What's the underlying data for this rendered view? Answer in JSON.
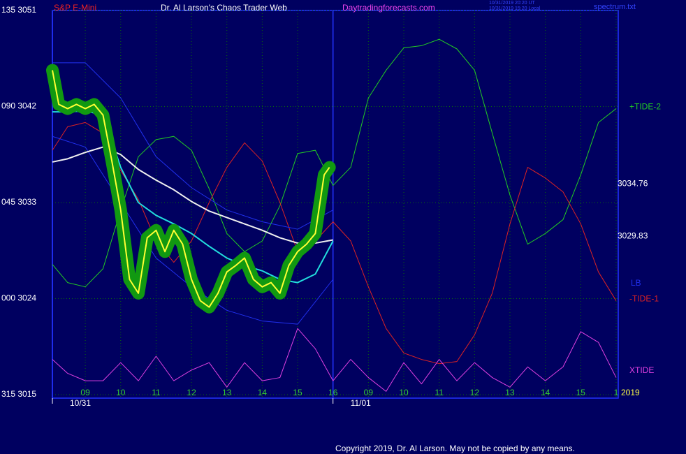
{
  "chart_data": {
    "type": "line",
    "instrument": "S&P E-Mini",
    "title": "Dr. Al Larson's Chaos Trader Web",
    "site": "Daytradingforecasts.com",
    "timestamps": [
      "10/31/2019 20:20 UT",
      "10/31/2019 15:20 Local"
    ],
    "file": "spectrum.txt",
    "copyright": "Copyright 2019, Dr. Al Larson. May not be copied by any means.",
    "year": "2019",
    "xlim": [
      0.07,
      16.06
    ],
    "xticks": [
      {
        "value": 1,
        "label": "09"
      },
      {
        "value": 2,
        "label": "10"
      },
      {
        "value": 3,
        "label": "11"
      },
      {
        "value": 4,
        "label": "12"
      },
      {
        "value": 5,
        "label": "13"
      },
      {
        "value": 6,
        "label": "14"
      },
      {
        "value": 7,
        "label": "15"
      },
      {
        "value": 8,
        "label": "16"
      },
      {
        "value": 9,
        "label": "09"
      },
      {
        "value": 10,
        "label": "10"
      },
      {
        "value": 11,
        "label": "11"
      },
      {
        "value": 12,
        "label": "12"
      },
      {
        "value": 13,
        "label": "13"
      },
      {
        "value": 14,
        "label": "14"
      },
      {
        "value": 15,
        "label": "15"
      },
      {
        "value": 16,
        "label": "1"
      }
    ],
    "dates": [
      {
        "value": 0.07,
        "label": "10/31"
      },
      {
        "value": 8,
        "label": "11/01"
      }
    ],
    "ylim": [
      3015,
      3051
    ],
    "yticks": [
      {
        "value": 3051,
        "label": "135 3051"
      },
      {
        "value": 3042,
        "label": "090 3042"
      },
      {
        "value": 3033,
        "label": "045 3033"
      },
      {
        "value": 3024,
        "label": "000 3024"
      },
      {
        "value": 3015,
        "label": "315 3015"
      }
    ],
    "grid": true,
    "price_labels": [
      3034.76,
      3029.83
    ],
    "series": [
      {
        "name": "+TIDE-2",
        "color": "#22cc22",
        "width": 1,
        "x": [
          0.07,
          0.5,
          1,
          1.5,
          2,
          2.5,
          3,
          3.5,
          4,
          4.5,
          5,
          5.5,
          6,
          6.5,
          7,
          7.5,
          8,
          8.5,
          9,
          9.5,
          10,
          10.5,
          11,
          11.5,
          12,
          12.5,
          13,
          13.5,
          14,
          14.5,
          15,
          15.5,
          16
        ],
        "values": [
          3027.2,
          3025.5,
          3025.1,
          3026.8,
          3032.3,
          3037.3,
          3038.9,
          3039.2,
          3037.9,
          3034.3,
          3030.1,
          3028.4,
          3029.4,
          3032.7,
          3037.6,
          3037.9,
          3034.6,
          3036.3,
          3042.8,
          3045.4,
          3047.5,
          3047.7,
          3048.3,
          3047.4,
          3045.4,
          3039.5,
          3033.7,
          3029.1,
          3030.1,
          3031.4,
          3035.6,
          3040.5,
          3041.8
        ]
      },
      {
        "name": "-TIDE-1",
        "color": "#dd2222",
        "width": 1,
        "x": [
          0.07,
          0.5,
          1,
          1.5,
          2,
          2.5,
          3,
          3.5,
          4,
          4.5,
          5,
          5.5,
          6,
          6.5,
          7,
          7.5,
          8,
          8.5,
          9,
          9.5,
          10,
          10.5,
          11,
          11.5,
          12,
          12.5,
          13,
          13.5,
          14,
          14.5,
          15,
          15.5,
          16
        ],
        "values": [
          3037.9,
          3040.1,
          3040.5,
          3039.5,
          3036.0,
          3033.3,
          3029.4,
          3027.4,
          3029.4,
          3033.0,
          3036.3,
          3038.6,
          3036.9,
          3033.0,
          3028.4,
          3029.4,
          3031.2,
          3029.4,
          3025.1,
          3021.2,
          3018.9,
          3018.3,
          3017.9,
          3018.1,
          3020.6,
          3024.5,
          3031.0,
          3036.3,
          3035.3,
          3034.0,
          3031.0,
          3026.5,
          3023.8
        ]
      },
      {
        "name": "XTIDE",
        "color": "#e040e0",
        "width": 1,
        "x": [
          0.07,
          0.5,
          1,
          1.5,
          2,
          2.5,
          3,
          3.5,
          4,
          4.5,
          5,
          5.5,
          6,
          6.5,
          7,
          7.5,
          8,
          8.5,
          9,
          9.5,
          10,
          10.5,
          11,
          11.5,
          12,
          12.5,
          13,
          13.5,
          14,
          14.5,
          15,
          15.5,
          16
        ],
        "values": [
          3018.3,
          3017.0,
          3016.3,
          3016.3,
          3018.0,
          3016.3,
          3018.6,
          3016.3,
          3017.3,
          3018.0,
          3015.7,
          3018.0,
          3016.3,
          3016.6,
          3021.2,
          3019.3,
          3016.3,
          3018.3,
          3016.6,
          3015.3,
          3018.0,
          3016.0,
          3018.3,
          3016.3,
          3018.0,
          3016.6,
          3015.7,
          3017.6,
          3016.3,
          3017.6,
          3020.9,
          3019.9,
          3016.6
        ]
      },
      {
        "name": "LB",
        "color": "#2030ee",
        "width": 1,
        "x": [
          0.07,
          1,
          2,
          3,
          4,
          5,
          6,
          7,
          8
        ],
        "values": [
          3039.2,
          3038.2,
          3033.0,
          3027.8,
          3025.1,
          3022.9,
          3021.9,
          3021.6,
          3025.8
        ]
      },
      {
        "color": "#2030ee",
        "width": 1,
        "x": [
          0.07,
          1,
          2,
          3,
          4,
          5,
          6,
          7,
          8
        ],
        "values": [
          3046.1,
          3046.1,
          3042.8,
          3037.3,
          3034.4,
          3032.3,
          3031.2,
          3030.5,
          3032.3
        ]
      },
      {
        "color": "#f0f0f0",
        "width": 2,
        "x": [
          0.07,
          0.5,
          1,
          1.5,
          2,
          2.5,
          3,
          3.5,
          4,
          4.5,
          5,
          5.5,
          6,
          6.5,
          7,
          7.5,
          8
        ],
        "values": [
          3036.8,
          3037.1,
          3037.7,
          3038.2,
          3037.5,
          3036.1,
          3035.1,
          3034.2,
          3033.1,
          3032.2,
          3031.6,
          3031.0,
          3030.4,
          3029.7,
          3029.2,
          3029.2,
          3029.5
        ]
      },
      {
        "color": "#22dddd",
        "width": 2,
        "x": [
          0.07,
          0.5,
          1,
          1.5,
          2,
          2.5,
          3,
          3.5,
          4,
          4.5,
          5,
          5.5,
          6,
          6.5,
          7,
          7.5,
          8
        ],
        "values": [
          3041.5,
          3041.5,
          3041.6,
          3041.2,
          3036.3,
          3033.0,
          3031.8,
          3031.0,
          3030.1,
          3028.9,
          3027.8,
          3027.1,
          3026.6,
          3025.8,
          3025.5,
          3026.3,
          3029.4
        ]
      },
      {
        "color": "#ffff33",
        "width": 2,
        "halo": "#119911",
        "x": [
          0.07,
          0.25,
          0.5,
          0.75,
          1,
          1.25,
          1.5,
          1.75,
          2,
          2.25,
          2.5,
          2.75,
          3,
          3.25,
          3.5,
          3.75,
          4,
          4.25,
          4.5,
          4.75,
          5,
          5.25,
          5.5,
          5.75,
          6,
          6.25,
          6.5,
          6.75,
          7,
          7.25,
          7.5,
          7.75,
          7.9
        ],
        "values": [
          3045.4,
          3042.2,
          3041.8,
          3042.2,
          3041.8,
          3042.2,
          3041.2,
          3036.9,
          3032.3,
          3025.8,
          3024.5,
          3029.7,
          3030.4,
          3028.4,
          3030.4,
          3029.1,
          3025.8,
          3023.8,
          3023.2,
          3024.5,
          3026.5,
          3027.1,
          3027.8,
          3025.8,
          3025.1,
          3025.5,
          3024.5,
          3027.1,
          3028.4,
          3029.1,
          3030.1,
          3035.6,
          3036.3
        ]
      }
    ]
  }
}
